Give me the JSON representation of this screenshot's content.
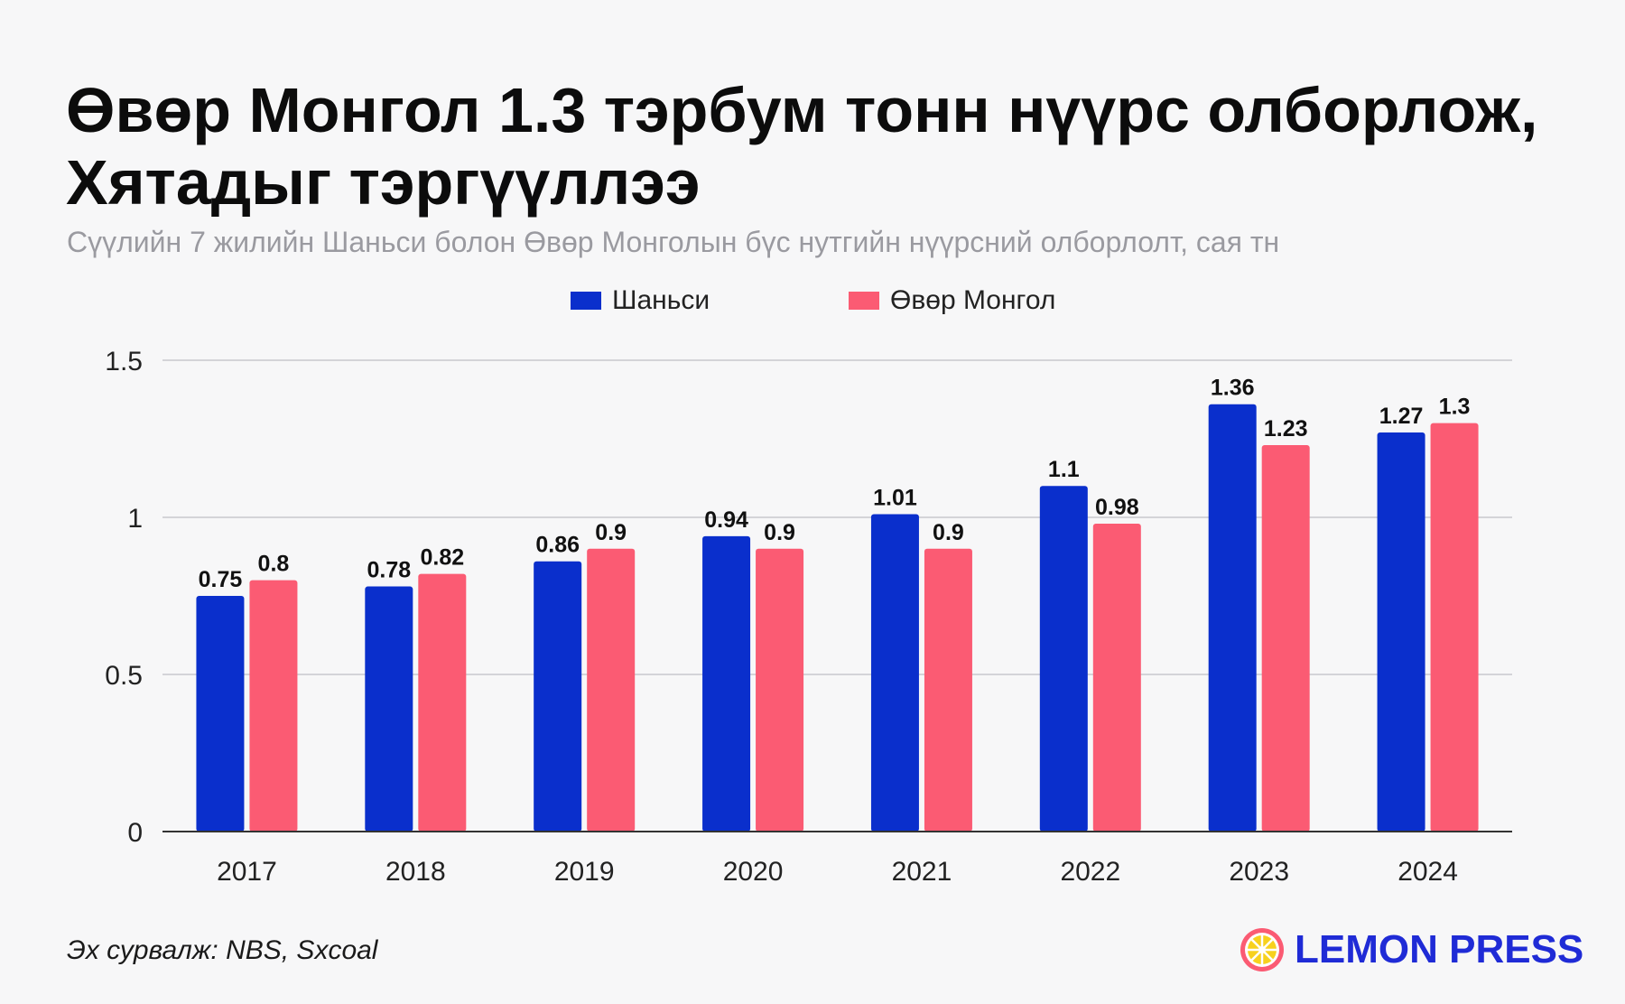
{
  "header": {
    "title": "Өвөр Монгол 1.3 тэрбум тонн нүүрс олборлож, Хятадыг тэргүүллээ",
    "subtitle": "Сүүлийн 7 жилийн Шаньси болон Өвөр Монголын бүс нутгийн нүүрсний олборлолт, сая тн"
  },
  "footer": {
    "source": "Эх сурвалж: NBS, Sxcoal",
    "logo_text": "LEMON PRESS"
  },
  "chart_data": {
    "type": "bar",
    "categories": [
      "2017",
      "2018",
      "2019",
      "2020",
      "2021",
      "2022",
      "2023",
      "2024"
    ],
    "series": [
      {
        "name": "Шаньси",
        "color": "#0a2fcc",
        "values": [
          0.75,
          0.78,
          0.86,
          0.94,
          1.01,
          1.1,
          1.36,
          1.27
        ]
      },
      {
        "name": "Өвөр Монгол",
        "color": "#fb5b73",
        "values": [
          0.8,
          0.82,
          0.9,
          0.9,
          0.9,
          0.98,
          1.23,
          1.3
        ]
      }
    ],
    "ylim": [
      0,
      1.5
    ],
    "yticks": [
      "0",
      "0.5",
      "1",
      "1.5"
    ],
    "grid": true,
    "legend": "top-center"
  }
}
